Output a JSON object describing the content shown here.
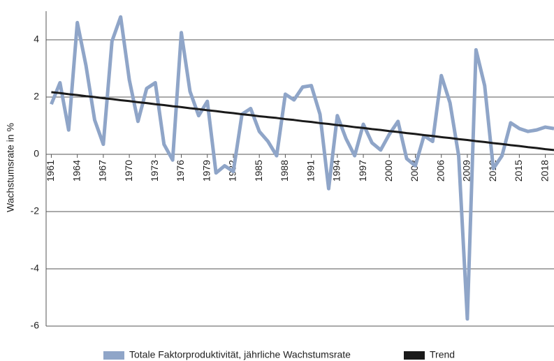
{
  "chart_data": {
    "type": "line",
    "y_label": "Wachstumsrate in %",
    "x": [
      1961,
      1962,
      1963,
      1964,
      1965,
      1966,
      1967,
      1968,
      1969,
      1970,
      1971,
      1972,
      1973,
      1974,
      1975,
      1976,
      1977,
      1978,
      1979,
      1980,
      1981,
      1982,
      1983,
      1984,
      1985,
      1986,
      1987,
      1988,
      1989,
      1990,
      1991,
      1992,
      1993,
      1994,
      1995,
      1996,
      1997,
      1998,
      1999,
      2000,
      2001,
      2002,
      2003,
      2004,
      2005,
      2006,
      2007,
      2008,
      2009,
      2010,
      2011,
      2012,
      2013,
      2014,
      2015,
      2016,
      2017,
      2018,
      2019
    ],
    "series": [
      {
        "name": "Totale Faktorproduktivität, jährliche Wachstumsrate",
        "color": "#8fa5c8",
        "width": 5,
        "values": [
          1.75,
          2.5,
          0.85,
          4.6,
          3.1,
          1.2,
          0.35,
          3.95,
          4.8,
          2.6,
          1.15,
          2.3,
          2.5,
          0.35,
          -0.2,
          4.25,
          2.2,
          1.35,
          1.85,
          -0.65,
          -0.4,
          -0.6,
          1.4,
          1.6,
          0.8,
          0.45,
          -0.05,
          2.1,
          1.9,
          2.35,
          2.4,
          1.4,
          -1.2,
          1.35,
          0.55,
          -0.05,
          1.05,
          0.4,
          0.15,
          0.7,
          1.15,
          -0.15,
          -0.4,
          0.65,
          0.45,
          2.75,
          1.8,
          -0.05,
          -5.75,
          3.65,
          2.4,
          -0.5,
          -0.05,
          1.1,
          0.9,
          0.8,
          0.85,
          0.95,
          0.9
        ]
      },
      {
        "name": "Trend",
        "color": "#1a1a1a",
        "width": 3,
        "values": [
          2.17,
          2.14,
          2.1,
          2.07,
          2.03,
          2.0,
          1.96,
          1.93,
          1.89,
          1.86,
          1.82,
          1.79,
          1.75,
          1.72,
          1.68,
          1.65,
          1.61,
          1.58,
          1.54,
          1.51,
          1.47,
          1.44,
          1.4,
          1.37,
          1.33,
          1.3,
          1.27,
          1.23,
          1.2,
          1.16,
          1.13,
          1.09,
          1.06,
          1.02,
          0.99,
          0.95,
          0.92,
          0.88,
          0.85,
          0.81,
          0.78,
          0.74,
          0.71,
          0.67,
          0.64,
          0.6,
          0.57,
          0.53,
          0.5,
          0.46,
          0.43,
          0.39,
          0.36,
          0.32,
          0.29,
          0.25,
          0.22,
          0.18,
          0.15
        ]
      }
    ],
    "xlim": [
      1960.4,
      2019
    ],
    "xticks": [
      1961,
      1964,
      1967,
      1970,
      1973,
      1976,
      1979,
      1982,
      1985,
      1988,
      1991,
      1994,
      1997,
      2000,
      2003,
      2006,
      2009,
      2012,
      2015,
      2018
    ],
    "ylim": [
      -6,
      5
    ],
    "yticks": [
      -6,
      -4,
      -2,
      0,
      2,
      4
    ],
    "grid": true,
    "legend": "bottom"
  }
}
